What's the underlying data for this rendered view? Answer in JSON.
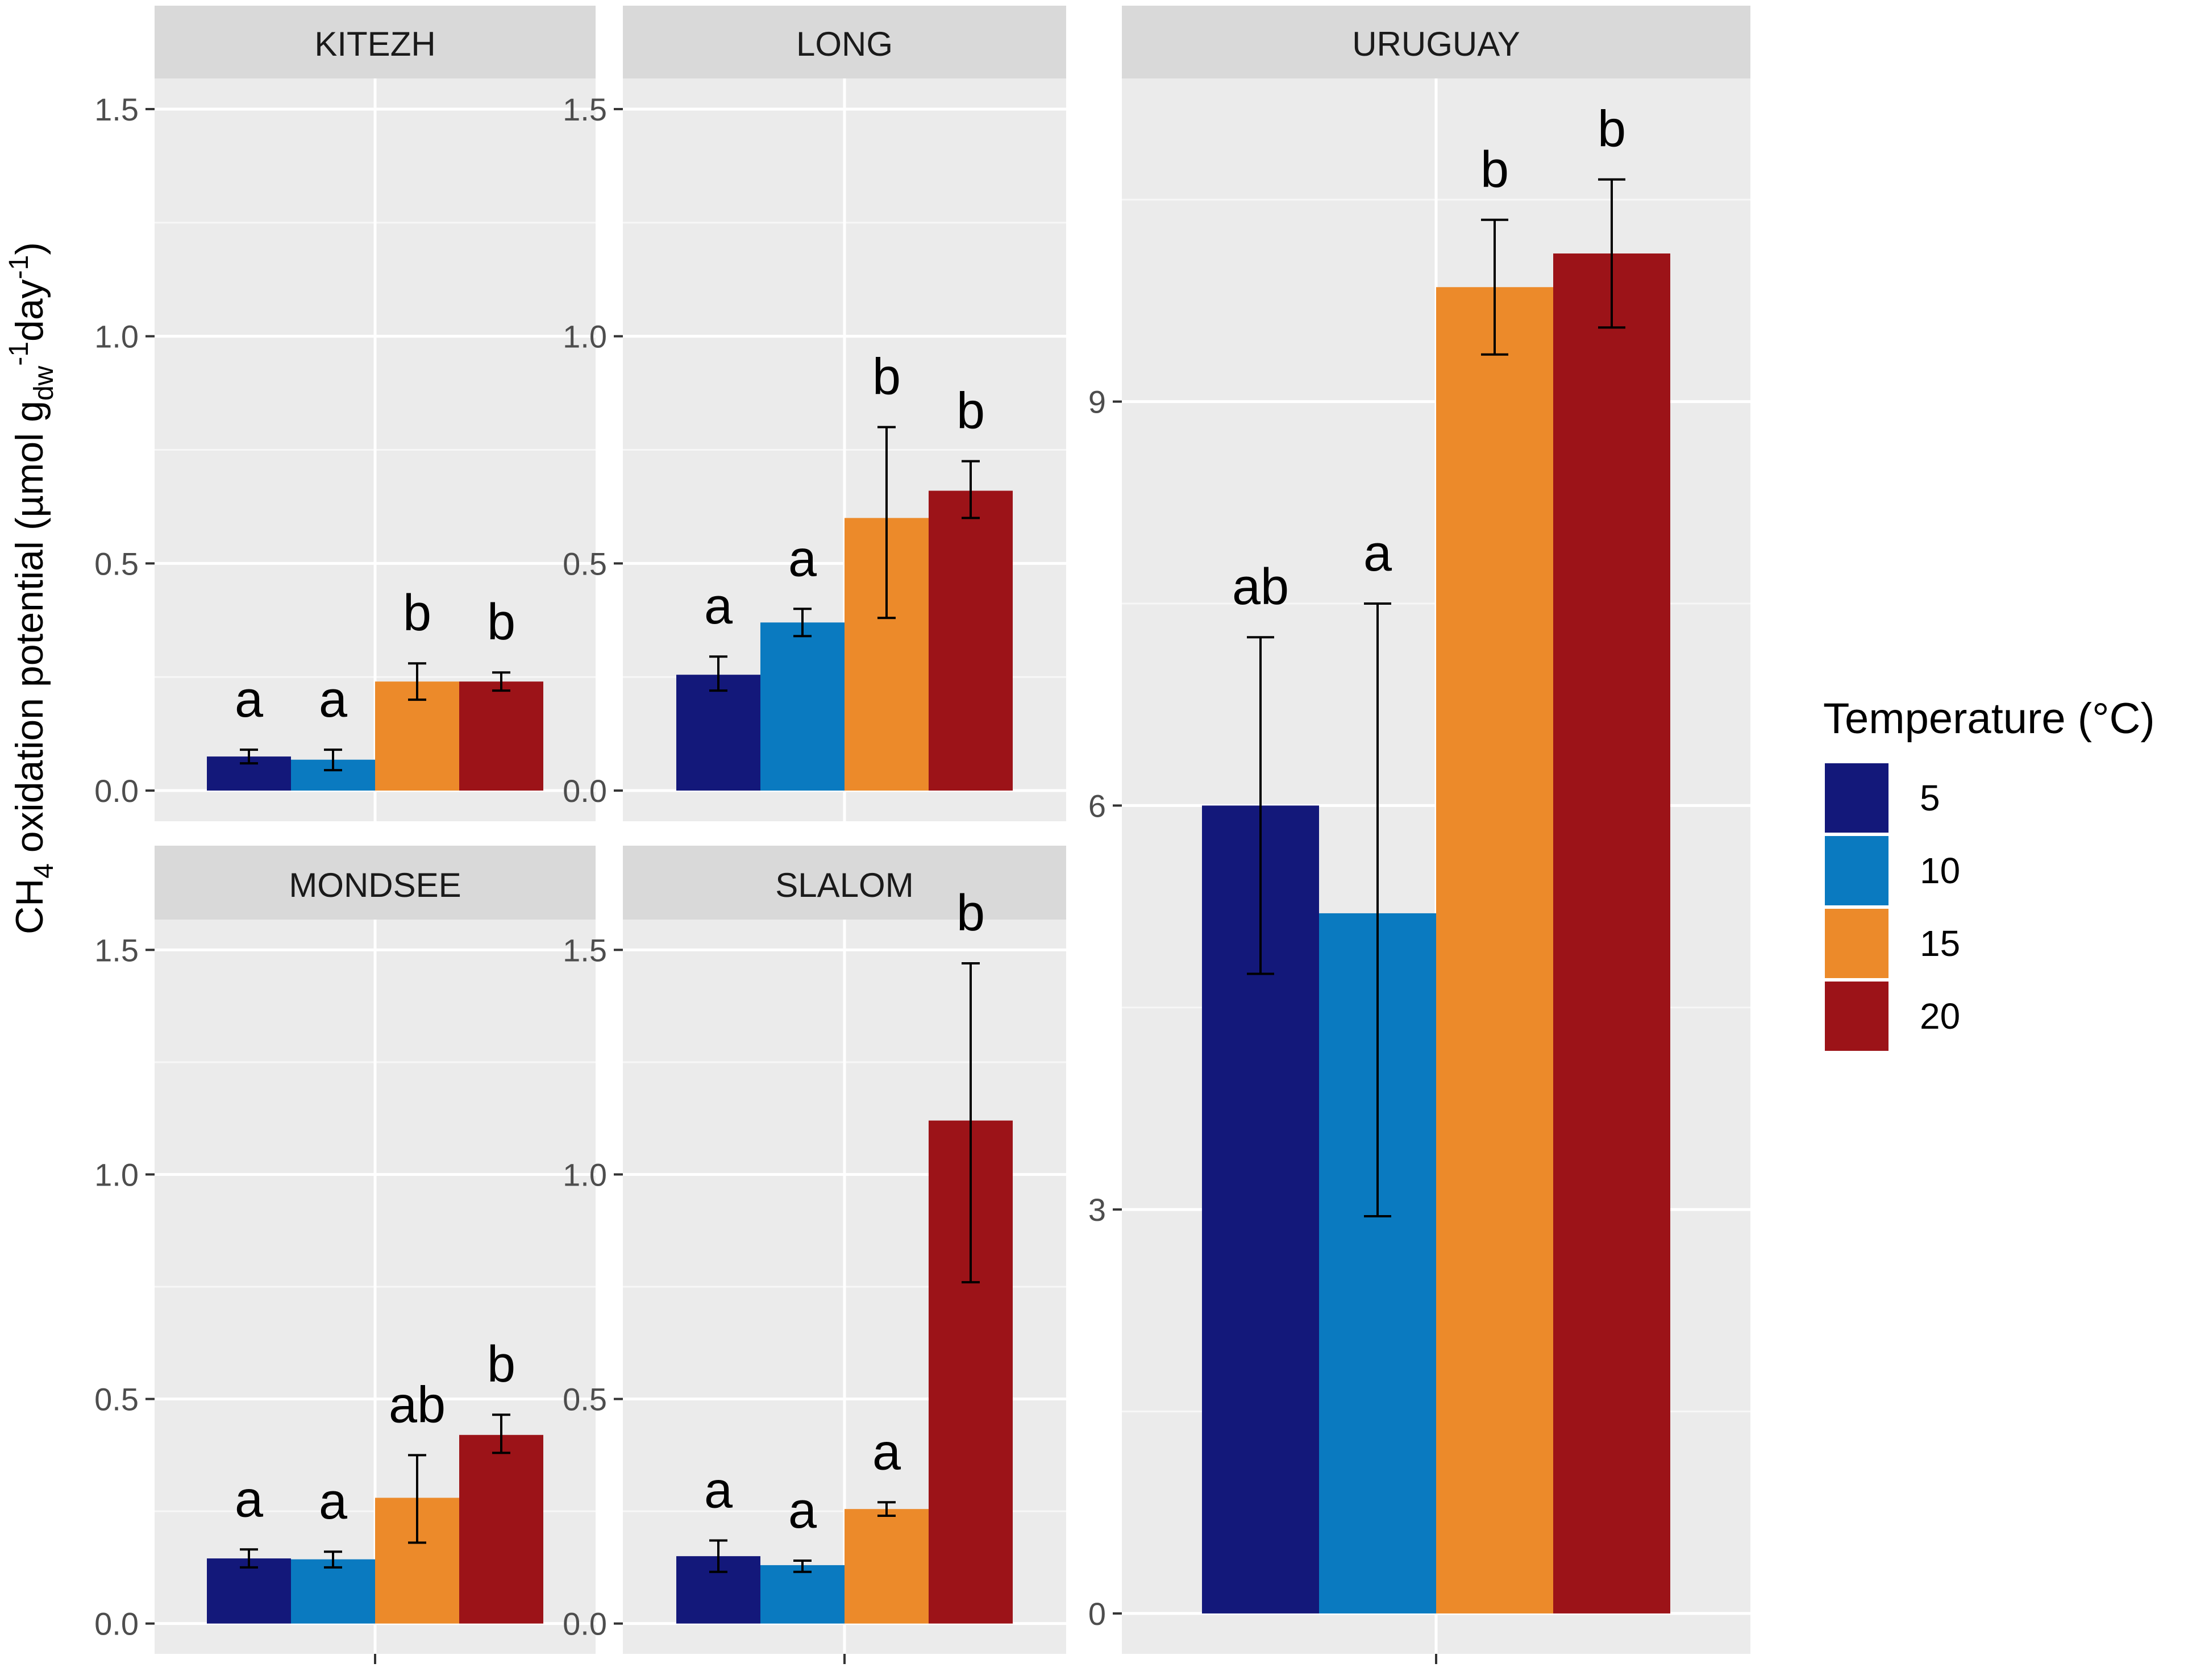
{
  "chart_data": {
    "type": "bar",
    "y_axis_label": {
      "prefix": "CH",
      "ch4_subscript": "4",
      "mid": " oxidation potential (µmol g",
      "dw_subscript": "dw",
      "minus_one": "-1",
      "day_text": "day",
      "day_exponent": "-1",
      "close": ")"
    },
    "legend": {
      "title": "Temperature (°C)",
      "position": "right",
      "entries": [
        {
          "label": "5",
          "color": "#13187a"
        },
        {
          "label": "10",
          "color": "#0a7ac0"
        },
        {
          "label": "15",
          "color": "#ec8a2a"
        },
        {
          "label": "20",
          "color": "#9c1318"
        }
      ]
    },
    "colors": {
      "panel_background": "#ebebeb",
      "strip_background": "#d9d9d9",
      "grid_major": "#ffffff",
      "axis_text": "#4d4d4d",
      "strip_text": "#1a1a1a",
      "annotation_text": "#000000"
    },
    "facets": [
      {
        "name": "KITEZH",
        "ylim": [
          0,
          1.5
        ],
        "y_ticks": [
          "0.0",
          "0.5",
          "1.0",
          "1.5"
        ],
        "y_tick_values": [
          0,
          0.5,
          1.0,
          1.5
        ],
        "series": [
          {
            "temperature": "5",
            "value": 0.075,
            "error_low": 0.06,
            "error_high": 0.09,
            "letter": "a"
          },
          {
            "temperature": "10",
            "value": 0.068,
            "error_low": 0.045,
            "error_high": 0.09,
            "letter": "a"
          },
          {
            "temperature": "15",
            "value": 0.24,
            "error_low": 0.2,
            "error_high": 0.28,
            "letter": "b"
          },
          {
            "temperature": "20",
            "value": 0.24,
            "error_low": 0.22,
            "error_high": 0.26,
            "letter": "b"
          }
        ]
      },
      {
        "name": "LONG",
        "ylim": [
          0,
          1.5
        ],
        "y_ticks": [
          "0.0",
          "0.5",
          "1.0",
          "1.5"
        ],
        "y_tick_values": [
          0,
          0.5,
          1.0,
          1.5
        ],
        "series": [
          {
            "temperature": "5",
            "value": 0.255,
            "error_low": 0.22,
            "error_high": 0.295,
            "letter": "a"
          },
          {
            "temperature": "10",
            "value": 0.37,
            "error_low": 0.34,
            "error_high": 0.4,
            "letter": "a"
          },
          {
            "temperature": "15",
            "value": 0.6,
            "error_low": 0.38,
            "error_high": 0.8,
            "letter": "b"
          },
          {
            "temperature": "20",
            "value": 0.66,
            "error_low": 0.6,
            "error_high": 0.725,
            "letter": "b"
          }
        ]
      },
      {
        "name": "URUGUAY",
        "ylim": [
          -0.3,
          11.4
        ],
        "y_ticks": [
          "0",
          "3",
          "6",
          "9"
        ],
        "y_tick_values": [
          0,
          3,
          6,
          9
        ],
        "series": [
          {
            "temperature": "5",
            "value": 6.0,
            "error_low": 4.75,
            "error_high": 7.25,
            "letter": "ab"
          },
          {
            "temperature": "10",
            "value": 5.2,
            "error_low": 2.95,
            "error_high": 7.5,
            "letter": "a"
          },
          {
            "temperature": "15",
            "value": 9.85,
            "error_low": 9.35,
            "error_high": 10.35,
            "letter": "b"
          },
          {
            "temperature": "20",
            "value": 10.1,
            "error_low": 9.55,
            "error_high": 10.65,
            "letter": "b"
          }
        ]
      },
      {
        "name": "MONDSEE",
        "ylim": [
          0,
          1.5
        ],
        "y_ticks": [
          "0.0",
          "0.5",
          "1.0",
          "1.5"
        ],
        "y_tick_values": [
          0,
          0.5,
          1.0,
          1.5
        ],
        "series": [
          {
            "temperature": "5",
            "value": 0.145,
            "error_low": 0.125,
            "error_high": 0.165,
            "letter": "a"
          },
          {
            "temperature": "10",
            "value": 0.143,
            "error_low": 0.125,
            "error_high": 0.16,
            "letter": "a"
          },
          {
            "temperature": "15",
            "value": 0.28,
            "error_low": 0.18,
            "error_high": 0.375,
            "letter": "ab"
          },
          {
            "temperature": "20",
            "value": 0.42,
            "error_low": 0.38,
            "error_high": 0.465,
            "letter": "b"
          }
        ]
      },
      {
        "name": "SLALOM",
        "ylim": [
          0,
          1.5
        ],
        "y_ticks": [
          "0.0",
          "0.5",
          "1.0",
          "1.5"
        ],
        "y_tick_values": [
          0,
          0.5,
          1.0,
          1.5
        ],
        "series": [
          {
            "temperature": "5",
            "value": 0.15,
            "error_low": 0.115,
            "error_high": 0.185,
            "letter": "a"
          },
          {
            "temperature": "10",
            "value": 0.13,
            "error_low": 0.115,
            "error_high": 0.14,
            "letter": "a"
          },
          {
            "temperature": "15",
            "value": 0.255,
            "error_low": 0.24,
            "error_high": 0.27,
            "letter": "a"
          },
          {
            "temperature": "20",
            "value": 1.12,
            "error_low": 0.76,
            "error_high": 1.47,
            "letter": "b"
          }
        ]
      }
    ]
  }
}
